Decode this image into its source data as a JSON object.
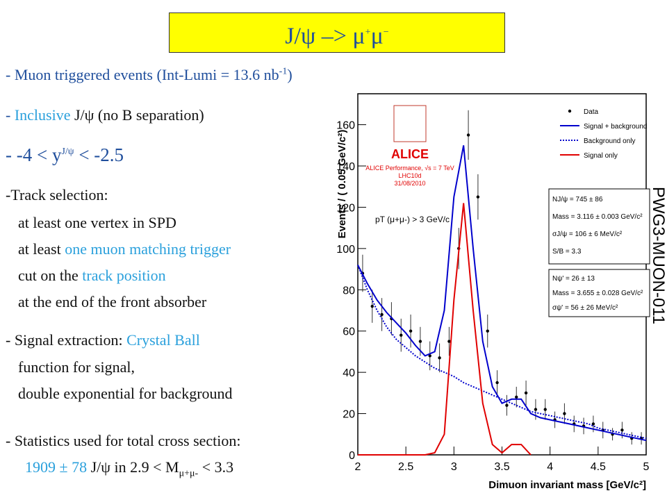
{
  "slide": {
    "title": [
      "J/ψ –> μ",
      "+",
      "μ",
      "−"
    ],
    "lines": [
      [
        "- Muon triggered events (Int-Lumi = 13.6 nb",
        "-1",
        ")"
      ],
      [
        "- ",
        "Inclusive",
        " J/ψ (no B separation)"
      ],
      [
        "-  -4 < y",
        "J/ψ",
        " < -2.5"
      ],
      [
        "-Track selection:"
      ],
      [
        "at least one vertex in SPD"
      ],
      [
        "at least ",
        "one muon matching trigger"
      ],
      [
        "cut on the ",
        "track position"
      ],
      [
        "at the end of the front absorber"
      ],
      [
        "- Signal extraction:  ",
        "Crystal Ball"
      ],
      [
        "function for signal,"
      ],
      [
        "double exponential for background"
      ],
      [
        "- Statistics used for total cross section:"
      ],
      [
        "1909 ± 78",
        " J/ψ in 2.9 < M",
        "μ+μ-",
        " < 3.3"
      ]
    ]
  },
  "chart_data": {
    "type": "line",
    "xlabel": "Dimuon invariant mass [GeV/c²]",
    "ylabel": "Events / ( 0.05 GeV/c²)",
    "xlim": [
      2,
      5
    ],
    "ylim": [
      0,
      175
    ],
    "xticks": [
      2,
      2.5,
      3,
      3.5,
      4,
      4.5,
      5
    ],
    "yticks": [
      0,
      20,
      40,
      60,
      80,
      100,
      120,
      140,
      160
    ],
    "series": [
      {
        "name": "Data",
        "color": "#000000",
        "style": "points",
        "x": [
          2.05,
          2.15,
          2.25,
          2.35,
          2.45,
          2.55,
          2.65,
          2.75,
          2.85,
          2.95,
          3.05,
          3.15,
          3.25,
          3.35,
          3.45,
          3.55,
          3.65,
          3.75,
          3.85,
          3.95,
          4.05,
          4.15,
          4.25,
          4.35,
          4.45,
          4.55,
          4.65,
          4.75,
          4.85,
          4.95
        ],
        "values": [
          88,
          72,
          68,
          66,
          58,
          60,
          55,
          48,
          47,
          55,
          100,
          155,
          125,
          60,
          35,
          24,
          28,
          30,
          22,
          22,
          17,
          20,
          15,
          14,
          15,
          12,
          10,
          12,
          8,
          8
        ],
        "errors": [
          9,
          8,
          8,
          8,
          8,
          8,
          7,
          7,
          7,
          7,
          10,
          12,
          11,
          8,
          6,
          5,
          5,
          6,
          5,
          5,
          4,
          5,
          4,
          4,
          4,
          4,
          3,
          4,
          3,
          3
        ]
      },
      {
        "name": "Signal + background",
        "color": "#0000cc",
        "style": "solid",
        "x": [
          2,
          2.1,
          2.2,
          2.3,
          2.4,
          2.5,
          2.6,
          2.7,
          2.8,
          2.9,
          3,
          3.1,
          3.2,
          3.3,
          3.4,
          3.5,
          3.6,
          3.7,
          3.8,
          3.9,
          4,
          4.1,
          4.2,
          4.3,
          4.4,
          4.5,
          4.6,
          4.7,
          4.8,
          4.9,
          5
        ],
        "values": [
          92,
          83,
          75,
          69,
          64,
          59,
          53,
          48,
          50,
          70,
          125,
          150,
          100,
          55,
          33,
          25,
          27,
          27,
          20,
          18,
          17,
          16,
          15,
          14,
          13,
          12,
          11,
          10,
          9,
          8,
          7
        ]
      },
      {
        "name": "Background only",
        "color": "#0000cc",
        "style": "dotted",
        "x": [
          2,
          2.1,
          2.2,
          2.3,
          2.4,
          2.5,
          2.6,
          2.7,
          2.8,
          2.9,
          3,
          3.1,
          3.2,
          3.3,
          3.4,
          3.5,
          3.6,
          3.7,
          3.8,
          3.9,
          4,
          4.1,
          4.2,
          4.3,
          4.4,
          4.5,
          4.6,
          4.7,
          4.8,
          4.9,
          5
        ],
        "values": [
          92,
          80,
          70,
          62,
          56,
          52,
          48,
          45,
          42,
          40,
          38,
          35,
          33,
          31,
          29,
          27,
          25,
          23,
          21,
          20,
          19,
          18,
          17,
          16,
          15,
          13,
          12,
          11,
          10,
          9,
          8
        ]
      },
      {
        "name": "Signal only",
        "color": "#e00000",
        "style": "solid",
        "x": [
          2,
          2.1,
          2.2,
          2.3,
          2.4,
          2.5,
          2.6,
          2.7,
          2.8,
          2.9,
          3,
          3.1,
          3.2,
          3.3,
          3.4,
          3.5,
          3.6,
          3.7,
          3.8,
          3.9,
          4,
          4.1,
          4.2,
          4.3,
          4.4,
          4.5,
          4.6,
          4.7,
          4.8,
          4.9,
          5
        ],
        "values": [
          0,
          0,
          0,
          0,
          0,
          0,
          0,
          0,
          1,
          10,
          75,
          122,
          70,
          25,
          5,
          1,
          5,
          5,
          0,
          null,
          null,
          null,
          null,
          null,
          null,
          null,
          null,
          null,
          null,
          null,
          null
        ]
      }
    ],
    "annotations": {
      "logo": "ALICE",
      "performance": [
        "ALICE Performance, √s = 7 TeV",
        "LHC10d",
        "31/08/2010"
      ],
      "cut": "pT (μ+μ-) > 3 GeV/c",
      "box1": [
        "NJ/ψ = 745 ± 86",
        "Mass = 3.116 ± 0.003 GeV/c²",
        "σJ/ψ = 106 ± 6 MeV/c²",
        "S/B = 3.3"
      ],
      "box2": [
        "Nψ' = 26 ± 13",
        "Mass = 3.655 ± 0.028 GeV/c²",
        "σψ' = 56 ± 26 MeV/c²"
      ],
      "side": "PWG3-MUON-011"
    }
  }
}
